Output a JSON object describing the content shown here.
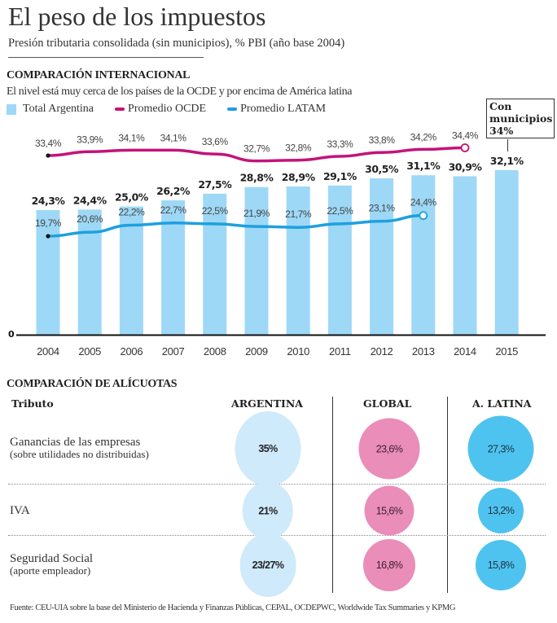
{
  "header": {
    "title": "El peso de los impuestos",
    "subtitle": "Presión tributaria consolidada (sin municipios), % PBI (año base 2004)"
  },
  "section_international": {
    "heading": "COMPARACIÓN INTERNACIONAL",
    "description": "El nivel está muy cerca de los países de la OCDE y por encima de América latina",
    "legend": [
      {
        "label": "Total Argentina",
        "color": "#9ed8f7",
        "kind": "box"
      },
      {
        "label": "Promedio OCDE",
        "color": "#c4137a",
        "kind": "line"
      },
      {
        "label": "Promedio LATAM",
        "color": "#1ea0de",
        "kind": "line"
      }
    ],
    "callout": {
      "line1": "Con",
      "line2": "municipios",
      "line3": "34%"
    }
  },
  "chart_data": {
    "type": "bar",
    "title": "Presión tributaria consolidada (sin municipios), % PBI (año base 2004)",
    "xlabel": "",
    "ylabel": "% PBI",
    "ylim": [
      0,
      36
    ],
    "y_zero_label": "0",
    "grid": false,
    "legend_position": "top-left",
    "categories": [
      "2004",
      "2005",
      "2006",
      "2007",
      "2008",
      "2009",
      "2010",
      "2011",
      "2012",
      "2013",
      "2014",
      "2015"
    ],
    "series": [
      {
        "name": "Total Argentina",
        "type": "bar",
        "color": "#9ed8f7",
        "values": [
          24.3,
          24.4,
          25.0,
          26.2,
          27.5,
          28.8,
          28.9,
          29.1,
          30.5,
          31.1,
          30.9,
          32.1
        ],
        "labels": [
          "24,3%",
          "24,4%",
          "25,0%",
          "26,2%",
          "27,5%",
          "28,8%",
          "28,9%",
          "29,1%",
          "30,5%",
          "31,1%",
          "30,9%",
          "32,1%"
        ]
      },
      {
        "name": "Promedio OCDE",
        "type": "line",
        "color": "#c4137a",
        "values": [
          33.4,
          33.9,
          34.1,
          34.1,
          33.6,
          32.7,
          32.8,
          33.3,
          33.8,
          34.2,
          34.4,
          null
        ],
        "labels": [
          "33,4%",
          "33,9%",
          "34,1%",
          "34,1%",
          "33,6%",
          "32,7%",
          "32,8%",
          "33,3%",
          "33,8%",
          "34,2%",
          "34,4%",
          ""
        ]
      },
      {
        "name": "Promedio LATAM",
        "type": "line",
        "color": "#1ea0de",
        "values": [
          19.7,
          20.6,
          22.2,
          22.7,
          22.5,
          21.9,
          21.7,
          22.5,
          23.1,
          24.4,
          null,
          null
        ],
        "labels": [
          "19,7%",
          "20,6%",
          "22,2%",
          "22,7%",
          "22,5%",
          "21,9%",
          "21,7%",
          "22,5%",
          "23,1%",
          "24,4%",
          "",
          ""
        ]
      }
    ],
    "annotations": [
      {
        "text": "Con municipios 34%",
        "year": "2015",
        "value": 34
      }
    ]
  },
  "section_rates": {
    "heading": "COMPARACIÓN DE ALÍCUOTAS",
    "columns": [
      "Tributo",
      "ARGENTINA",
      "GLOBAL",
      "A. LATINA"
    ],
    "rows": [
      {
        "label": "Ganancias de las empresas",
        "sublabel": "(sobre utilidades no distribuidas)",
        "argentina": "35%",
        "global": "23,6%",
        "latina": "27,3%",
        "values": {
          "argentina": 35,
          "global": 23.6,
          "latina": 27.3
        }
      },
      {
        "label": "IVA",
        "sublabel": "",
        "argentina": "21%",
        "global": "15,6%",
        "latina": "13,2%",
        "values": {
          "argentina": 21,
          "global": 15.6,
          "latina": 13.2
        }
      },
      {
        "label": "Seguridad Social",
        "sublabel": "(aporte empleador)",
        "argentina": "23/27%",
        "global": "16,8%",
        "latina": "15,8%",
        "values": {
          "argentina": 25,
          "global": 16.8,
          "latina": 15.8
        }
      }
    ]
  },
  "footer": {
    "source": "Fuente: CEU-UIA sobre la base del Ministerio de Hacienda y Finanzas Públicas, CEPAL, OCDEPWC, Worldwide Tax Summaries y KPMG"
  }
}
